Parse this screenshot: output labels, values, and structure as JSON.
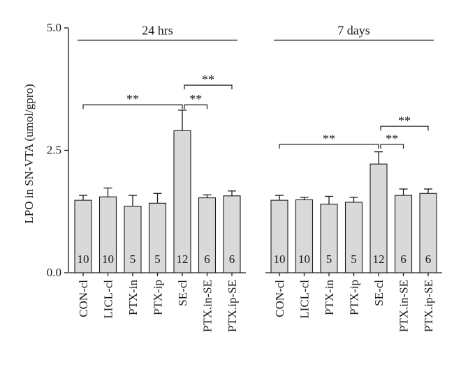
{
  "chart_data": {
    "type": "bar",
    "ylabel": "LPO in SN-VTA (umol/gpro)",
    "ylim": [
      0,
      5
    ],
    "yticks": [
      "0.0",
      "2.5",
      "5.0"
    ],
    "grid": false,
    "groups": [
      {
        "title": "24 hrs",
        "categories": [
          "CON-cl",
          "LICL-cl",
          "PTX-in",
          "PTX-ip",
          "SE-cl",
          "PTX.in-SE",
          "PTX.ip-SE"
        ],
        "values": [
          1.48,
          1.55,
          1.36,
          1.42,
          2.9,
          1.53,
          1.57
        ],
        "errors": [
          0.1,
          0.18,
          0.22,
          0.2,
          0.42,
          0.06,
          0.1
        ],
        "n": [
          "10",
          "10",
          "5",
          "5",
          "12",
          "6",
          "6"
        ],
        "comparisons": [
          {
            "from": "CON-cl",
            "to": "SE-cl",
            "label": "**",
            "y": 3.43
          },
          {
            "from": "SE-cl",
            "to": "PTX.in-SE",
            "label": "**",
            "y": 3.43
          },
          {
            "from": "SE-cl",
            "to": "PTX.ip-SE",
            "label": "**",
            "y": 3.83
          }
        ]
      },
      {
        "title": "7 days",
        "categories": [
          "CON-cl",
          "LICL-cl",
          "PTX-in",
          "PTX-ip",
          "SE-cl",
          "PTX.in-SE",
          "PTX.ip-SE"
        ],
        "values": [
          1.48,
          1.49,
          1.4,
          1.44,
          2.22,
          1.58,
          1.62
        ],
        "errors": [
          0.1,
          0.05,
          0.16,
          0.1,
          0.25,
          0.13,
          0.09
        ],
        "n": [
          "10",
          "10",
          "5",
          "5",
          "12",
          "6",
          "6"
        ],
        "comparisons": [
          {
            "from": "CON-cl",
            "to": "SE-cl",
            "label": "**",
            "y": 2.62
          },
          {
            "from": "SE-cl",
            "to": "PTX.in-SE",
            "label": "**",
            "y": 2.62
          },
          {
            "from": "SE-cl",
            "to": "PTX.ip-SE",
            "label": "**",
            "y": 2.99
          }
        ]
      }
    ]
  }
}
